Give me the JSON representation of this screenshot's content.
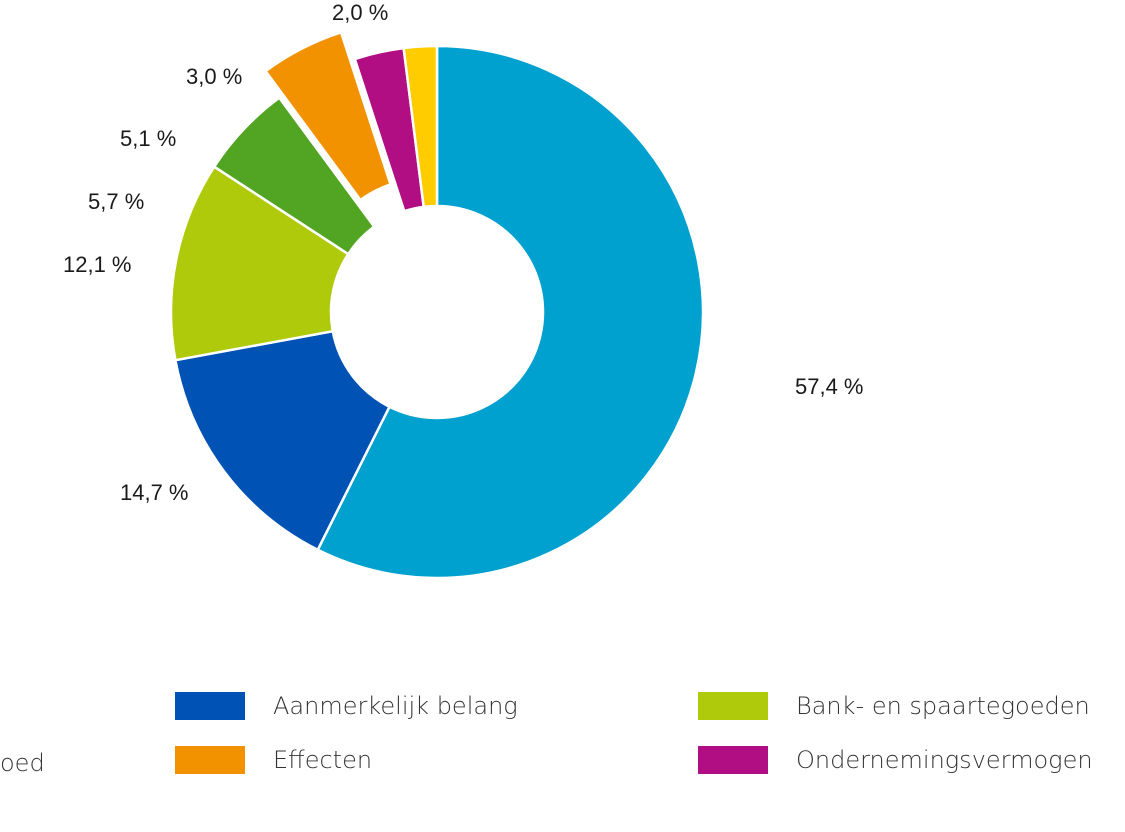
{
  "chart_data": {
    "type": "pie",
    "variant": "donut",
    "title": "",
    "slices": [
      {
        "label": "",
        "value": 57.4,
        "display": "57,4 %",
        "color": "#00A0CF"
      },
      {
        "label": "Aanmerkelijk belang",
        "value": 14.7,
        "display": "14,7 %",
        "color": "#0052B4"
      },
      {
        "label": "Bank- en spaartegoeden",
        "value": 12.1,
        "display": "12,1 %",
        "color": "#AFCA0B"
      },
      {
        "label": "",
        "value": 5.7,
        "display": "5,7 %",
        "color": "#52A423"
      },
      {
        "label": "Effecten",
        "value": 5.1,
        "display": "5,1 %",
        "color": "#F39200"
      },
      {
        "label": "Ondernemingsvermogen",
        "value": 3.0,
        "display": "3,0 %",
        "color": "#B10E83"
      },
      {
        "label": "",
        "value": 2.0,
        "display": "2,0 %",
        "color": "#FFCC00"
      }
    ],
    "legend": {
      "placement": "bottom",
      "cut_off_text": "oed",
      "entries": [
        {
          "name": "Aanmerkelijk belang",
          "color": "#0052B4"
        },
        {
          "name": "Bank- en spaartegoeden",
          "color": "#AFCA0B"
        },
        {
          "name": "Effecten",
          "color": "#F39200"
        },
        {
          "name": "Ondernemingsvermogen",
          "color": "#B10E83"
        }
      ]
    }
  }
}
